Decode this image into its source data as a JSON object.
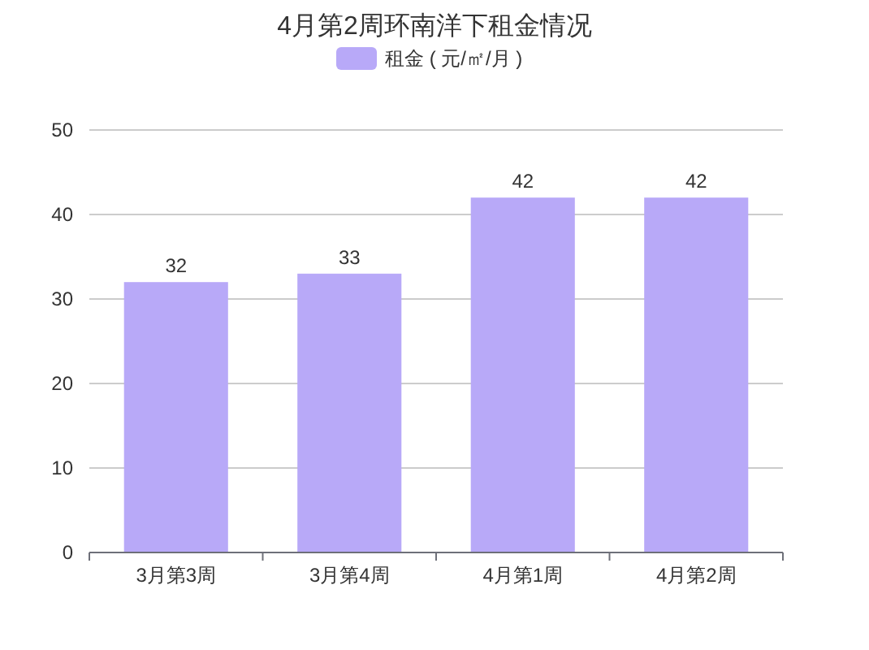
{
  "chart_data": {
    "type": "bar",
    "title": "4月第2周环南洋下租金情况",
    "categories": [
      "3月第3周",
      "3月第4周",
      "4月第1周",
      "4月第2周"
    ],
    "series": [
      {
        "name": "租金 ( 元/㎡/月 )",
        "color": "#b8a9f8",
        "values": [
          32,
          33,
          42,
          42
        ]
      }
    ],
    "ylim": [
      0,
      50
    ],
    "yticks": [
      0,
      10,
      20,
      30,
      40,
      50
    ],
    "grid": "y",
    "legend": "top",
    "data_labels": true
  }
}
